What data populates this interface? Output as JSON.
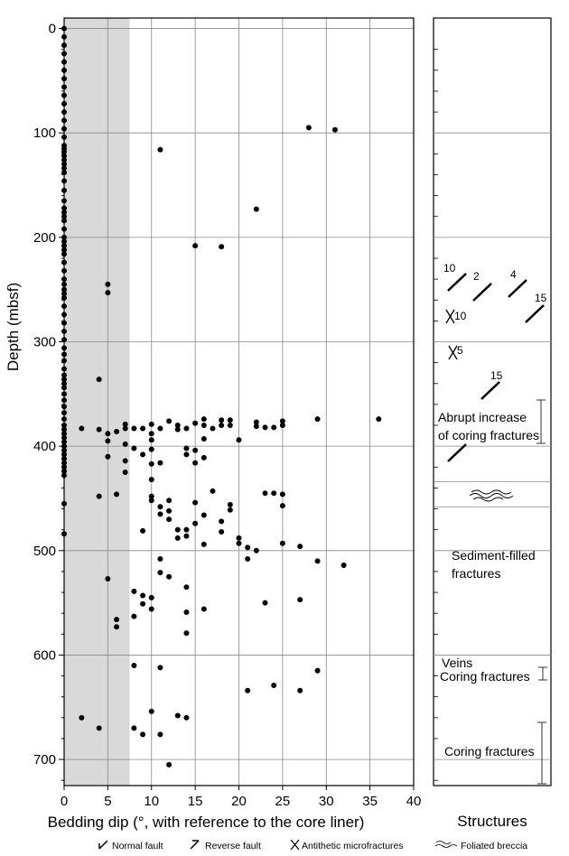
{
  "chart_data": {
    "type": "scatter",
    "xlabel": "Bedding dip (°, with reference to the core liner)",
    "ylabel": "Depth (mbsf)",
    "xlim": [
      0,
      40
    ],
    "ylim": [
      725,
      -10
    ],
    "x_ticks": [
      0,
      5,
      10,
      15,
      20,
      25,
      30,
      35,
      40
    ],
    "y_ticks": [
      0,
      100,
      200,
      300,
      400,
      500,
      600,
      700
    ],
    "grid": true,
    "shaded_band_x": [
      0,
      7.5
    ],
    "points": [
      [
        0,
        0
      ],
      [
        0,
        8
      ],
      [
        0,
        16
      ],
      [
        0,
        24
      ],
      [
        0,
        32
      ],
      [
        0,
        40
      ],
      [
        0,
        48
      ],
      [
        0,
        56
      ],
      [
        0,
        64
      ],
      [
        0,
        72
      ],
      [
        0,
        80
      ],
      [
        0,
        88
      ],
      [
        0,
        96
      ],
      [
        0,
        104
      ],
      [
        0,
        112
      ],
      [
        0,
        115
      ],
      [
        0,
        118
      ],
      [
        0,
        122
      ],
      [
        0,
        126
      ],
      [
        0,
        130
      ],
      [
        0,
        134
      ],
      [
        0,
        138
      ],
      [
        0,
        146
      ],
      [
        0,
        155
      ],
      [
        0,
        165
      ],
      [
        0,
        172
      ],
      [
        0,
        176
      ],
      [
        0,
        180
      ],
      [
        0,
        184
      ],
      [
        0,
        192
      ],
      [
        0,
        200
      ],
      [
        0,
        204
      ],
      [
        0,
        208
      ],
      [
        0,
        212
      ],
      [
        0,
        216
      ],
      [
        0,
        224
      ],
      [
        0,
        232
      ],
      [
        0,
        240
      ],
      [
        0,
        245
      ],
      [
        0,
        250
      ],
      [
        0,
        254
      ],
      [
        0,
        258
      ],
      [
        0,
        266
      ],
      [
        0,
        274
      ],
      [
        0,
        282
      ],
      [
        0,
        290
      ],
      [
        0,
        298
      ],
      [
        0,
        306
      ],
      [
        0,
        312
      ],
      [
        0,
        318
      ],
      [
        0,
        326
      ],
      [
        0,
        332
      ],
      [
        0,
        336
      ],
      [
        0,
        340
      ],
      [
        0,
        344
      ],
      [
        0,
        350
      ],
      [
        0,
        356
      ],
      [
        0,
        362
      ],
      [
        0,
        368
      ],
      [
        0,
        374
      ],
      [
        0,
        380
      ],
      [
        0,
        384
      ],
      [
        0,
        388
      ],
      [
        0,
        392
      ],
      [
        0,
        396
      ],
      [
        0,
        400
      ],
      [
        0,
        404
      ],
      [
        0,
        408
      ],
      [
        0,
        412
      ],
      [
        0,
        416
      ],
      [
        0,
        420
      ],
      [
        0,
        424
      ],
      [
        0,
        428
      ],
      [
        0,
        455
      ],
      [
        0,
        484
      ],
      [
        28,
        95
      ],
      [
        31,
        97
      ],
      [
        11,
        116
      ],
      [
        22,
        173
      ],
      [
        15,
        208
      ],
      [
        18,
        209
      ],
      [
        5,
        245
      ],
      [
        5,
        253
      ],
      [
        4,
        336
      ],
      [
        2,
        383
      ],
      [
        4,
        384
      ],
      [
        5,
        388
      ],
      [
        5,
        395
      ],
      [
        6,
        386
      ],
      [
        7,
        379
      ],
      [
        7,
        383
      ],
      [
        8,
        383
      ],
      [
        9,
        383
      ],
      [
        10,
        379
      ],
      [
        10,
        388
      ],
      [
        10,
        394
      ],
      [
        11,
        383
      ],
      [
        12,
        376
      ],
      [
        13,
        380
      ],
      [
        13,
        384
      ],
      [
        14,
        383
      ],
      [
        15,
        378
      ],
      [
        16,
        374
      ],
      [
        16,
        380
      ],
      [
        16,
        393
      ],
      [
        17,
        383
      ],
      [
        18,
        375
      ],
      [
        18,
        380
      ],
      [
        19,
        375
      ],
      [
        19,
        380
      ],
      [
        20,
        394
      ],
      [
        22,
        377
      ],
      [
        22,
        381
      ],
      [
        23,
        382
      ],
      [
        24,
        382
      ],
      [
        25,
        376
      ],
      [
        25,
        380
      ],
      [
        29,
        374
      ],
      [
        36,
        374
      ],
      [
        5,
        410
      ],
      [
        7,
        398
      ],
      [
        7,
        414
      ],
      [
        7,
        425
      ],
      [
        8,
        402
      ],
      [
        9,
        408
      ],
      [
        10,
        403
      ],
      [
        10,
        417
      ],
      [
        10,
        432
      ],
      [
        11,
        416
      ],
      [
        14,
        402
      ],
      [
        14,
        408
      ],
      [
        15,
        404
      ],
      [
        15,
        416
      ],
      [
        16,
        411
      ],
      [
        17,
        443
      ],
      [
        10,
        448
      ],
      [
        10,
        452
      ],
      [
        4,
        448
      ],
      [
        6,
        446
      ],
      [
        11,
        458
      ],
      [
        11,
        465
      ],
      [
        12,
        452
      ],
      [
        12,
        462
      ],
      [
        12,
        470
      ],
      [
        13,
        480
      ],
      [
        13,
        488
      ],
      [
        14,
        480
      ],
      [
        14,
        486
      ],
      [
        15,
        454
      ],
      [
        15,
        474
      ],
      [
        16,
        466
      ],
      [
        16,
        494
      ],
      [
        18,
        472
      ],
      [
        18,
        482
      ],
      [
        19,
        456
      ],
      [
        19,
        461
      ],
      [
        20,
        488
      ],
      [
        20,
        493
      ],
      [
        21,
        497
      ],
      [
        21,
        508
      ],
      [
        22,
        500
      ],
      [
        23,
        445
      ],
      [
        24,
        445
      ],
      [
        25,
        446
      ],
      [
        25,
        457
      ],
      [
        25,
        493
      ],
      [
        27,
        496
      ],
      [
        9,
        481
      ],
      [
        29,
        510
      ],
      [
        32,
        514
      ],
      [
        11,
        508
      ],
      [
        11,
        521
      ],
      [
        12,
        525
      ],
      [
        14,
        535
      ],
      [
        5,
        527
      ],
      [
        8,
        539
      ],
      [
        9,
        543
      ],
      [
        9,
        551
      ],
      [
        10,
        545
      ],
      [
        10,
        556
      ],
      [
        8,
        563
      ],
      [
        6,
        566
      ],
      [
        6,
        573
      ],
      [
        14,
        559
      ],
      [
        14,
        579
      ],
      [
        16,
        556
      ],
      [
        23,
        550
      ],
      [
        27,
        547
      ],
      [
        8,
        610
      ],
      [
        11,
        612
      ],
      [
        29,
        615
      ],
      [
        21,
        634
      ],
      [
        24,
        629
      ],
      [
        27,
        634
      ],
      [
        2,
        660
      ],
      [
        4,
        670
      ],
      [
        8,
        670
      ],
      [
        9,
        676
      ],
      [
        10,
        654
      ],
      [
        11,
        676
      ],
      [
        13,
        658
      ],
      [
        14,
        660
      ],
      [
        12,
        705
      ]
    ]
  },
  "structures": {
    "title": "Structures",
    "annotations": [
      {
        "text": "Abrupt increase",
        "depth": 385
      },
      {
        "text": "of coring fractures",
        "depth": 405
      },
      {
        "text": "Sediment-filled",
        "depth": 508
      },
      {
        "text": "fractures",
        "depth": 527
      },
      {
        "text": "Veins",
        "depth": 608
      },
      {
        "text": "Coring fractures",
        "depth": 627
      },
      {
        "text": "Coring fractures",
        "depth": 690
      }
    ],
    "dip_labels": [
      "10",
      "2",
      "4",
      "15",
      "10",
      "5",
      "15"
    ]
  },
  "legend": {
    "items": [
      {
        "label": "Normal fault",
        "icon": "normal-fault-icon"
      },
      {
        "label": "Reverse fault",
        "icon": "reverse-fault-icon"
      },
      {
        "label": "Antithetic microfractures",
        "icon": "antithetic-microfracture-icon"
      },
      {
        "label": "Foliated breccia",
        "icon": "foliated-breccia-icon"
      }
    ]
  }
}
